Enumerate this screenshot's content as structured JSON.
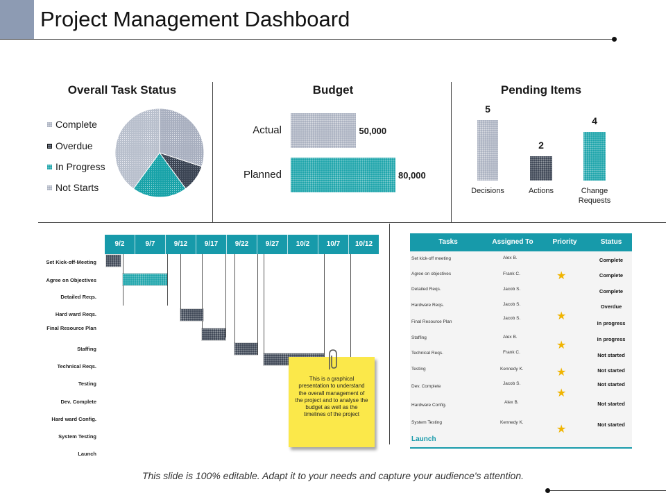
{
  "header": {
    "title": "Project Management Dashboard"
  },
  "overall_task_status": {
    "title": "Overall Task Status",
    "legend": [
      {
        "label": "Complete",
        "pattern": "grey-dots"
      },
      {
        "label": "Overdue",
        "pattern": "dark-dots"
      },
      {
        "label": "In Progress",
        "pattern": "teal-dots"
      },
      {
        "label": "Not Starts",
        "pattern": "grey-dots"
      }
    ]
  },
  "budget": {
    "title": "Budget"
  },
  "pending": {
    "title": "Pending Items"
  },
  "chart_data": [
    {
      "type": "pie",
      "title": "Overall Task Status",
      "labels": [
        "Complete",
        "Overdue",
        "In Progress",
        "Not Starts"
      ],
      "values": [
        30,
        10,
        20,
        40
      ],
      "colors": [
        "#a8afbf",
        "#3a4352",
        "#17a2a8",
        "#b8bfcc"
      ]
    },
    {
      "type": "bar",
      "orientation": "horizontal",
      "title": "Budget",
      "categories": [
        "Actual",
        "Planned"
      ],
      "values": [
        50000,
        80000
      ],
      "value_labels": [
        "50,000",
        "80,000"
      ],
      "colors": [
        "#a8afbf",
        "#17a2a8"
      ],
      "xlim": [
        0,
        80000
      ]
    },
    {
      "type": "bar",
      "title": "Pending Items",
      "categories": [
        "Decisions",
        "Actions",
        "Change Requests"
      ],
      "values": [
        5,
        2,
        4
      ],
      "colors": [
        "#a8afbf",
        "#3a4352",
        "#17a2a8"
      ],
      "ylim": [
        0,
        5
      ]
    }
  ],
  "gantt": {
    "dates": [
      "9/2",
      "9/7",
      "9/12",
      "9/17",
      "9/22",
      "9/27",
      "10/2",
      "10/7",
      "10/12"
    ],
    "tasks": [
      "Set Kick-off-Meeting",
      "Agree on Objectives",
      "Detailed Reqs.",
      "Hard ward Reqs.",
      "Final Resource Plan",
      "Staffing",
      "Technical Reqs.",
      "Testing",
      "Dev. Complete",
      "Hard ward Config.",
      "System Testing",
      "Launch"
    ]
  },
  "note": {
    "text": "This is a graphical presentation to understand the overall management of the project and to analyse the budget as well as the timelines of the project"
  },
  "table": {
    "headers": {
      "tasks": "Tasks",
      "assigned": "Assigned To",
      "priority": "Priority",
      "status": "Status"
    },
    "rows": [
      {
        "task": "Set kick-off meeting",
        "assigned": "Alex B.",
        "status": "Complete"
      },
      {
        "task": "Agree on objectives",
        "assigned": "Frank C.",
        "status": "Complete"
      },
      {
        "task": "Detailed Reqs.",
        "assigned": "Jacob S.",
        "status": "Complete"
      },
      {
        "task": "Hardware Reqs.",
        "assigned": "Jacob S.",
        "status": "Overdue"
      },
      {
        "task": "Final Resource Plan",
        "assigned": "Jacob S.",
        "status": "In progress"
      },
      {
        "task": "Staffing",
        "assigned": "Alex B.",
        "status": "In progress"
      },
      {
        "task": "Technical Reqs.",
        "assigned": "Frank C.",
        "status": "Not started"
      },
      {
        "task": "Testing",
        "assigned": "Kennedy K.",
        "status": "Not started"
      },
      {
        "task": "Dev. Complete",
        "assigned": "Jacob S.",
        "status": "Not started"
      },
      {
        "task": "Hardware Config.",
        "assigned": "Alex B.",
        "status": "Not started"
      },
      {
        "task": "System Testing",
        "assigned": "Kennedy K.",
        "status": "Not started"
      }
    ],
    "last_row": "Launch",
    "star_icon": "★"
  },
  "footer": {
    "text": "This slide is 100% editable. Adapt it to your needs and capture your audience's attention."
  },
  "colors": {
    "teal": "#179aaa",
    "grey": "#a8afbf",
    "dark": "#3a4352",
    "corner": "#8d9bb3",
    "note": "#fbe84a",
    "star": "#f0b400"
  }
}
